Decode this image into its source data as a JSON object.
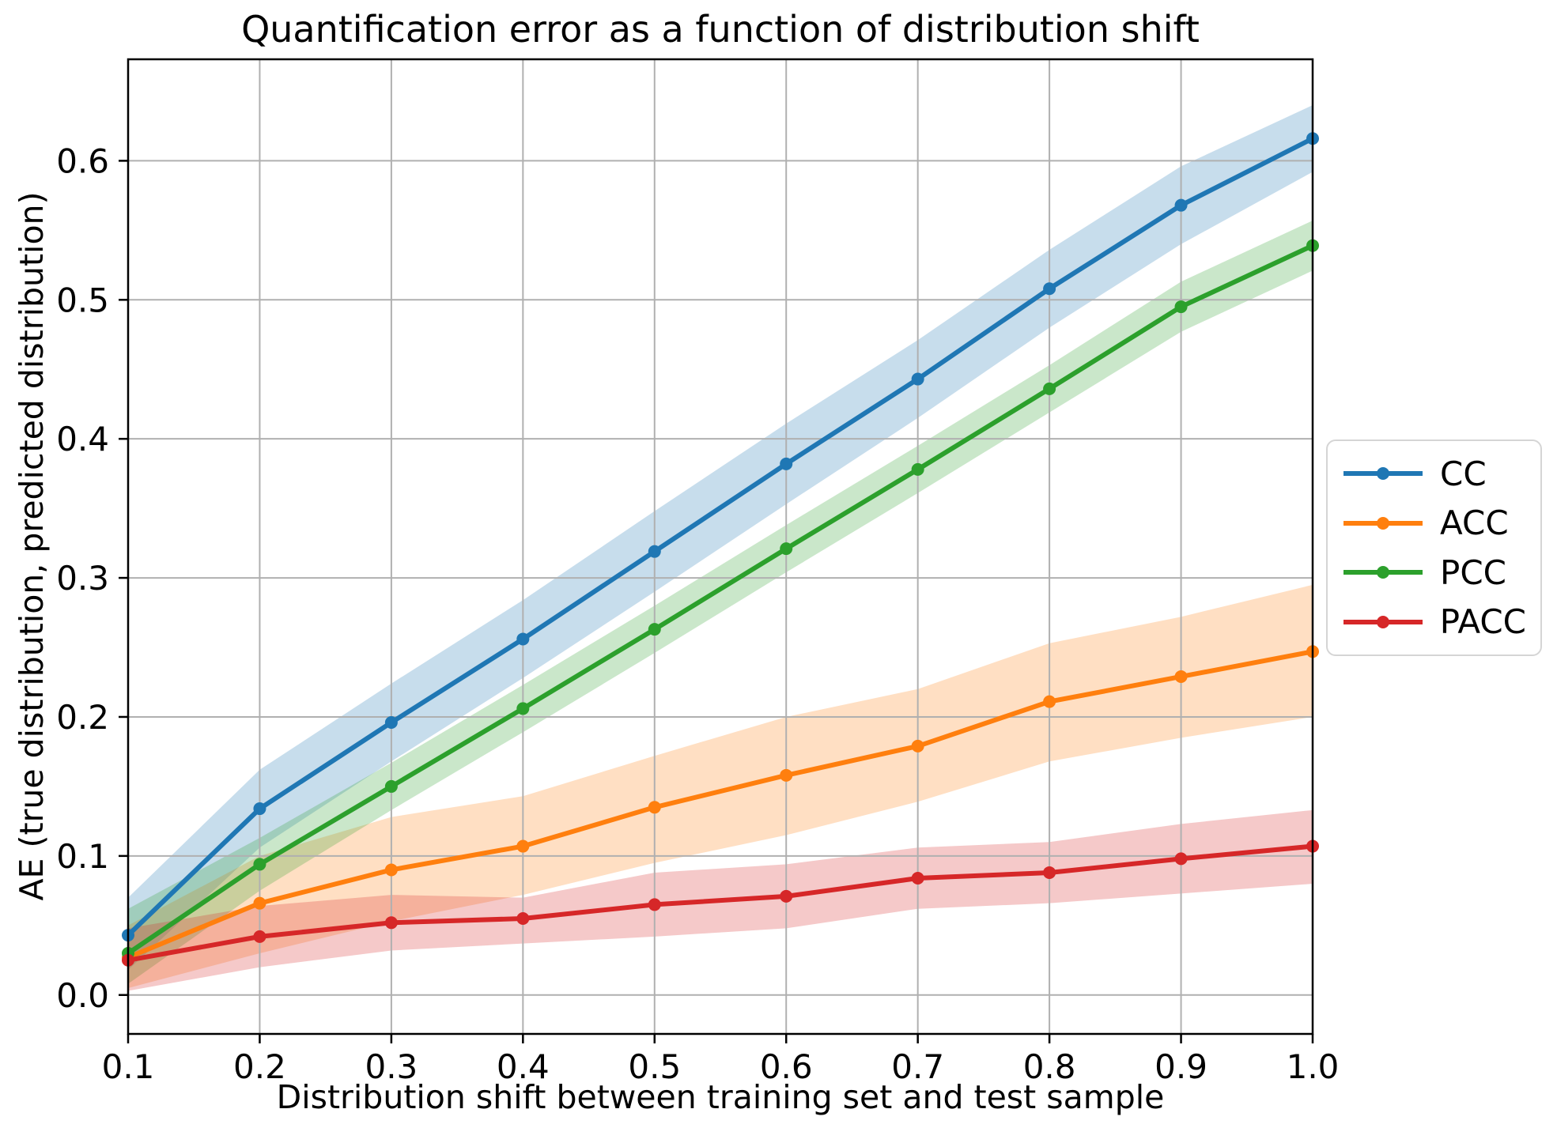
{
  "chart_data": {
    "type": "line",
    "title": "Quantification error as a function of distribution shift",
    "xlabel": "Distribution shift between training set and test sample",
    "ylabel": "AE (true distribution, predicted distribution)",
    "grid": true,
    "legend_position": "center right, outside axes",
    "legend": [
      "CC",
      "ACC",
      "PCC",
      "PACC"
    ],
    "band_alpha": 0.25,
    "x": [
      0.1,
      0.2,
      0.3,
      0.4,
      0.5,
      0.6,
      0.7,
      0.8,
      0.9,
      1.0
    ],
    "xlim": [
      0.1,
      1.0
    ],
    "ylim": [
      -0.028,
      0.673
    ],
    "xticks": {
      "values": [
        0.1,
        0.2,
        0.3,
        0.4,
        0.5,
        0.6,
        0.7,
        0.8,
        0.9,
        1.0
      ],
      "labels": [
        "0.1",
        "0.2",
        "0.3",
        "0.4",
        "0.5",
        "0.6",
        "0.7",
        "0.8",
        "0.9",
        "1.0"
      ]
    },
    "yticks": {
      "values": [
        0.0,
        0.1,
        0.2,
        0.3,
        0.4,
        0.5,
        0.6
      ],
      "labels": [
        "0.0",
        "0.1",
        "0.2",
        "0.3",
        "0.4",
        "0.5",
        "0.6"
      ]
    },
    "series": [
      {
        "name": "CC",
        "color": "#1f77b4",
        "values": [
          0.043,
          0.134,
          0.196,
          0.256,
          0.319,
          0.382,
          0.443,
          0.508,
          0.568,
          0.616
        ],
        "band_lower": [
          0.018,
          0.106,
          0.168,
          0.228,
          0.29,
          0.353,
          0.415,
          0.48,
          0.54,
          0.592
        ],
        "band_upper": [
          0.07,
          0.162,
          0.224,
          0.284,
          0.348,
          0.411,
          0.471,
          0.536,
          0.596,
          0.64
        ]
      },
      {
        "name": "ACC",
        "color": "#ff7f0e",
        "values": [
          0.027,
          0.066,
          0.09,
          0.107,
          0.135,
          0.158,
          0.179,
          0.211,
          0.229,
          0.247
        ],
        "band_lower": [
          0.005,
          0.03,
          0.053,
          0.072,
          0.095,
          0.115,
          0.139,
          0.168,
          0.185,
          0.2
        ],
        "band_upper": [
          0.05,
          0.1,
          0.128,
          0.143,
          0.172,
          0.2,
          0.22,
          0.253,
          0.272,
          0.295
        ]
      },
      {
        "name": "PCC",
        "color": "#2ca02c",
        "values": [
          0.03,
          0.094,
          0.15,
          0.206,
          0.263,
          0.321,
          0.378,
          0.436,
          0.495,
          0.539
        ],
        "band_lower": [
          0.008,
          0.075,
          0.133,
          0.189,
          0.246,
          0.304,
          0.361,
          0.419,
          0.477,
          0.521
        ],
        "band_upper": [
          0.062,
          0.113,
          0.167,
          0.223,
          0.28,
          0.338,
          0.395,
          0.453,
          0.513,
          0.557
        ]
      },
      {
        "name": "PACC",
        "color": "#d62728",
        "values": [
          0.025,
          0.042,
          0.052,
          0.055,
          0.065,
          0.071,
          0.084,
          0.088,
          0.098,
          0.107
        ],
        "band_lower": [
          0.003,
          0.02,
          0.032,
          0.037,
          0.042,
          0.048,
          0.062,
          0.066,
          0.073,
          0.08
        ],
        "band_upper": [
          0.048,
          0.064,
          0.072,
          0.07,
          0.088,
          0.094,
          0.106,
          0.11,
          0.123,
          0.133
        ]
      }
    ]
  },
  "colors": {
    "background": "#ffffff",
    "grid": "#b0b0b0",
    "spine": "#000000",
    "tick": "#000000",
    "legend_border": "#d5d5d5"
  }
}
